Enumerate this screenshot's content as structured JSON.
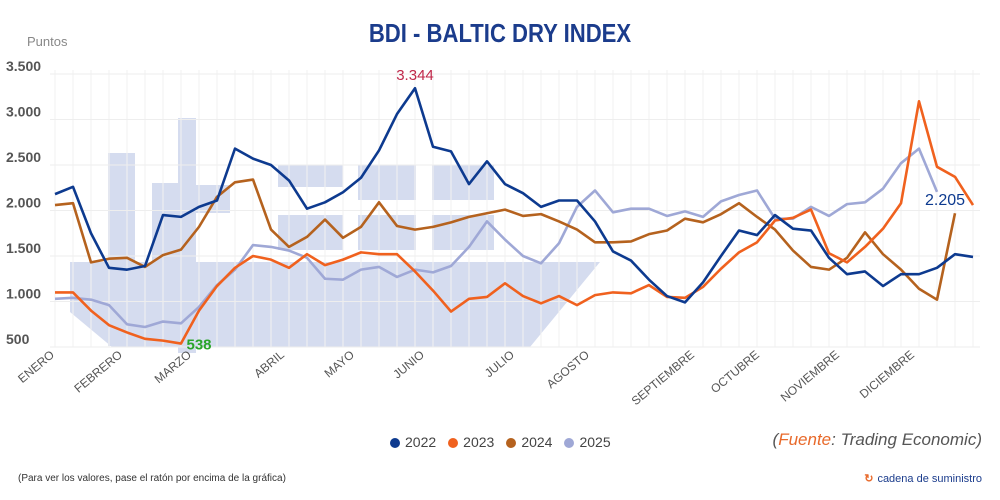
{
  "chart_data": {
    "type": "line",
    "title": "BDI - BALTIC DRY INDEX",
    "ylabel": "Puntos",
    "ylim": [
      500,
      3500
    ],
    "yticks": [
      "3.500",
      "3.000",
      "2.500",
      "2.000",
      "1.500",
      "1.000",
      "500"
    ],
    "ytick_values": [
      3500,
      3000,
      2500,
      2000,
      1500,
      1000,
      500
    ],
    "months": [
      "ENERO",
      "FEBRERO",
      "MARZO",
      "ABRIL",
      "MAYO",
      "JUNIO",
      "JULIO",
      "AGOSTO",
      "SEPTIEMBRE",
      "OCTUBRE",
      "NOVIEMBRE",
      "DICIEMBRE"
    ],
    "x_unit": "week",
    "grid": true,
    "legend_position": "bottom",
    "series": [
      {
        "name": "2022",
        "color": "#0d3a8f",
        "values": [
          2180,
          2260,
          1750,
          1370,
          1350,
          1390,
          1950,
          1930,
          2040,
          2110,
          2680,
          2570,
          2500,
          2330,
          2020,
          2090,
          2200,
          2360,
          2660,
          3060,
          3344,
          2700,
          2650,
          2290,
          2540,
          2290,
          2190,
          2040,
          2110,
          2110,
          1880,
          1550,
          1450,
          1240,
          1060,
          990,
          1210,
          1500,
          1780,
          1730,
          1950,
          1800,
          1780,
          1480,
          1300,
          1330,
          1170,
          1300,
          1300,
          1370,
          1520,
          1490
        ]
      },
      {
        "name": "2023",
        "color": "#f0611e",
        "values": [
          1100,
          1100,
          900,
          740,
          660,
          590,
          570,
          538,
          900,
          1170,
          1370,
          1500,
          1460,
          1370,
          1520,
          1400,
          1460,
          1540,
          1520,
          1520,
          1330,
          1120,
          890,
          1030,
          1050,
          1200,
          1060,
          980,
          1060,
          960,
          1070,
          1100,
          1090,
          1180,
          1050,
          1040,
          1160,
          1360,
          1540,
          1650,
          1890,
          1920,
          2010,
          1530,
          1430,
          1600,
          1800,
          2080,
          3200,
          2480,
          2370,
          2060
        ]
      },
      {
        "name": "2024",
        "color": "#b5621e",
        "values": [
          2060,
          2080,
          1430,
          1470,
          1480,
          1380,
          1510,
          1570,
          1820,
          2150,
          2310,
          2340,
          1790,
          1600,
          1710,
          1900,
          1700,
          1820,
          2090,
          1830,
          1790,
          1820,
          1870,
          1930,
          1970,
          2010,
          1940,
          1960,
          1880,
          1790,
          1650,
          1650,
          1660,
          1740,
          1780,
          1910,
          1870,
          1960,
          2080,
          1930,
          1790,
          1560,
          1380,
          1350,
          1480,
          1760,
          1520,
          1350,
          1140,
          1020,
          1970
        ]
      },
      {
        "name": "2025",
        "color": "#9fa8d6",
        "values": [
          1030,
          1040,
          1020,
          960,
          750,
          720,
          780,
          760,
          940,
          1180,
          1350,
          1620,
          1600,
          1560,
          1480,
          1250,
          1240,
          1350,
          1380,
          1270,
          1350,
          1320,
          1390,
          1600,
          1880,
          1680,
          1500,
          1420,
          1640,
          2040,
          2220,
          1980,
          2020,
          2020,
          1940,
          1990,
          1930,
          2100,
          2170,
          2220,
          1910,
          1910,
          2040,
          1940,
          2070,
          2090,
          2240,
          2520,
          2680,
          2205
        ]
      }
    ],
    "annotations": [
      {
        "text": "3.344",
        "series": "2022",
        "value": 3344,
        "color": "#c0284a"
      },
      {
        "text": "538",
        "series": "2023",
        "value": 538,
        "color": "#2aa52a"
      },
      {
        "text": "2.205",
        "series": "2025",
        "value": 2205,
        "color": "#0d3a8f"
      }
    ]
  },
  "source": {
    "open": "(",
    "label": "Fuente",
    "rest": ": Trading Economic)"
  },
  "note": "(Para ver los valores, pase el ratón por encima de la gráfica)",
  "brand": {
    "icon": "circular-arrows-logo",
    "text": "cadena de suministro"
  }
}
